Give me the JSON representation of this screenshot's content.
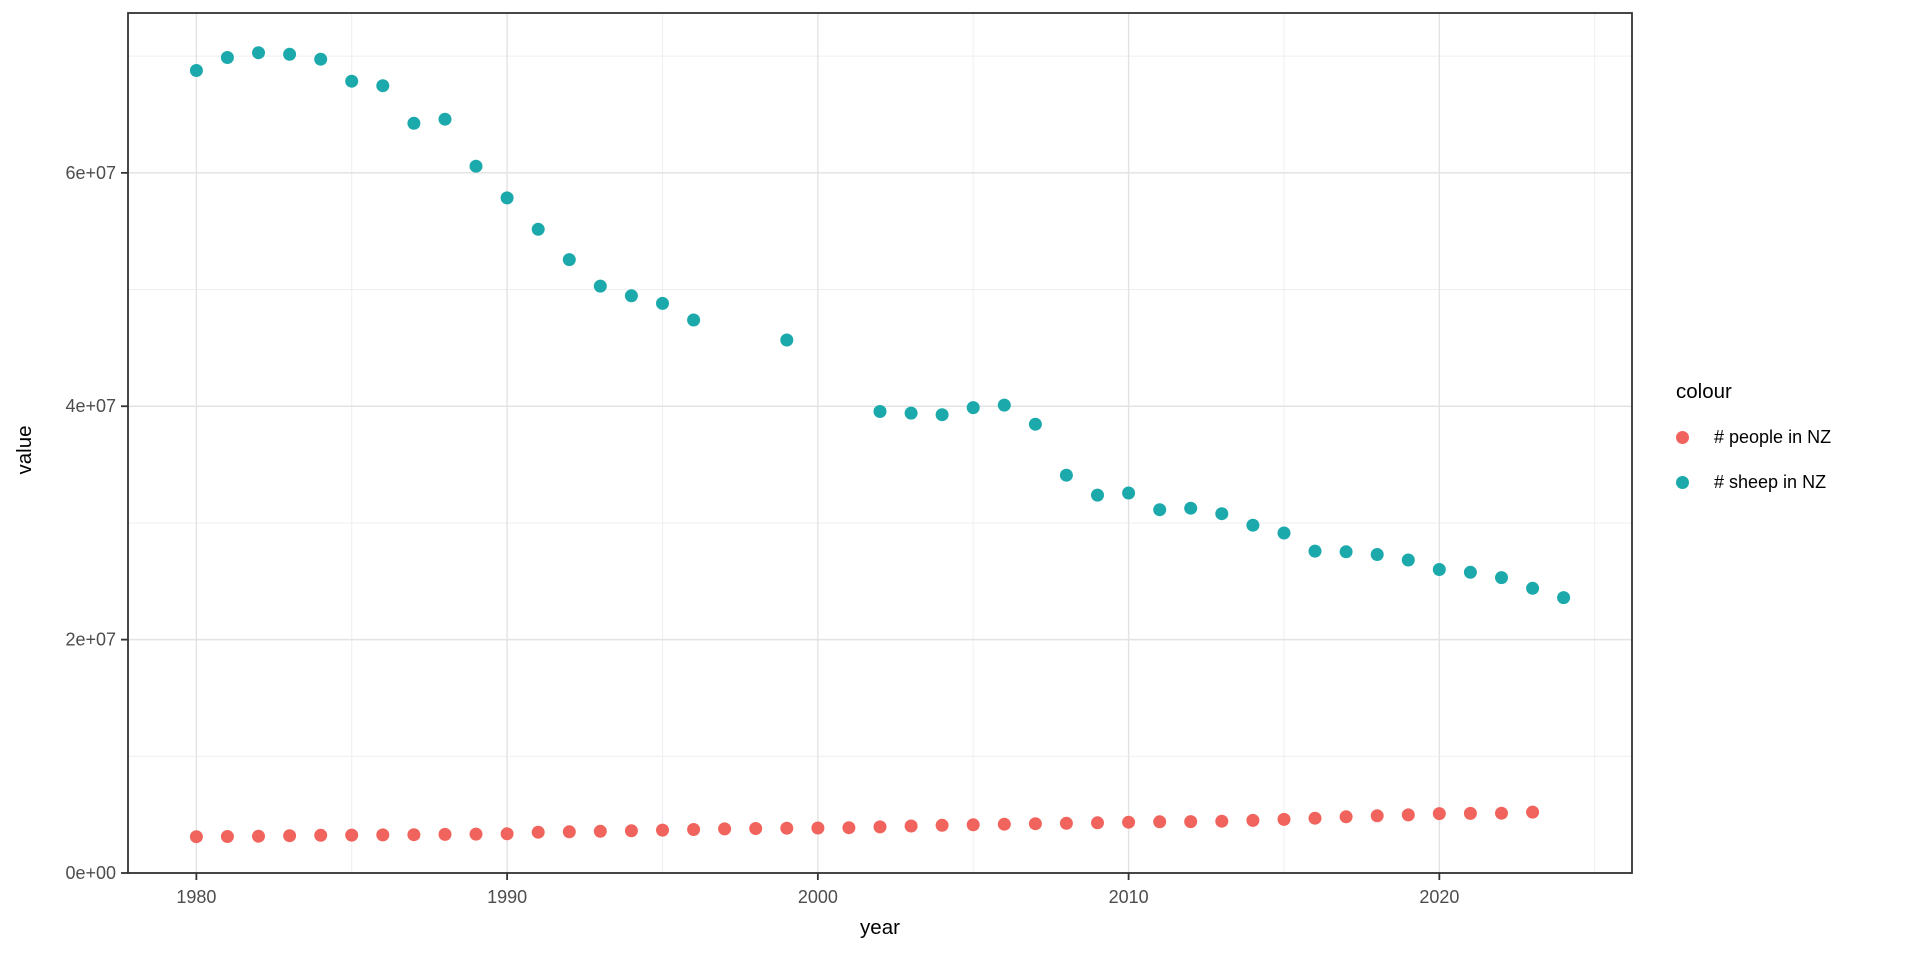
{
  "chart_data": {
    "type": "scatter",
    "title": "",
    "xlabel": "year",
    "ylabel": "value",
    "grid": true,
    "legend": {
      "title": "colour",
      "position": "right"
    },
    "x_axis": {
      "range": [
        1977.8,
        2026.2
      ],
      "ticks": [
        1980,
        1990,
        2000,
        2010,
        2020
      ],
      "tick_labels": [
        "1980",
        "1990",
        "2000",
        "2010",
        "2020"
      ],
      "minor_ticks": [
        1985,
        1995,
        2005,
        2015,
        2025
      ]
    },
    "y_axis": {
      "range": [
        0,
        73700000
      ],
      "ticks": [
        0,
        20000000,
        40000000,
        60000000
      ],
      "tick_labels": [
        "0e+00",
        "2e+07",
        "4e+07",
        "6e+07"
      ],
      "minor_ticks": [
        10000000,
        30000000,
        50000000,
        70000000
      ]
    },
    "series": [
      {
        "name": "# people in NZ",
        "color": "#F1645D",
        "points": [
          [
            1980,
            3113000
          ],
          [
            1981,
            3125000
          ],
          [
            1982,
            3156000
          ],
          [
            1983,
            3199000
          ],
          [
            1984,
            3227000
          ],
          [
            1985,
            3247000
          ],
          [
            1986,
            3263000
          ],
          [
            1987,
            3284000
          ],
          [
            1988,
            3312000
          ],
          [
            1989,
            3330000
          ],
          [
            1990,
            3360000
          ],
          [
            1991,
            3495000
          ],
          [
            1992,
            3532000
          ],
          [
            1993,
            3572000
          ],
          [
            1994,
            3620000
          ],
          [
            1995,
            3673000
          ],
          [
            1996,
            3732000
          ],
          [
            1997,
            3781000
          ],
          [
            1998,
            3815000
          ],
          [
            1999,
            3835000
          ],
          [
            2000,
            3858000
          ],
          [
            2001,
            3881000
          ],
          [
            2002,
            3949000
          ],
          [
            2003,
            4027000
          ],
          [
            2004,
            4088000
          ],
          [
            2005,
            4134000
          ],
          [
            2006,
            4185000
          ],
          [
            2007,
            4224000
          ],
          [
            2008,
            4260000
          ],
          [
            2009,
            4303000
          ],
          [
            2010,
            4351000
          ],
          [
            2011,
            4384000
          ],
          [
            2012,
            4408000
          ],
          [
            2013,
            4442000
          ],
          [
            2014,
            4510000
          ],
          [
            2015,
            4596000
          ],
          [
            2016,
            4693000
          ],
          [
            2017,
            4814000
          ],
          [
            2018,
            4901000
          ],
          [
            2019,
            4979000
          ],
          [
            2020,
            5090000
          ],
          [
            2021,
            5111000
          ],
          [
            2022,
            5124000
          ],
          [
            2023,
            5223000
          ]
        ]
      },
      {
        "name": "# sheep in NZ",
        "color": "#1BA9AB",
        "points": [
          [
            1980,
            68772000
          ],
          [
            1981,
            69883000
          ],
          [
            1982,
            70301000
          ],
          [
            1983,
            70163000
          ],
          [
            1984,
            69739000
          ],
          [
            1985,
            67854000
          ],
          [
            1986,
            67470000
          ],
          [
            1987,
            64244000
          ],
          [
            1988,
            64600000
          ],
          [
            1989,
            60569000
          ],
          [
            1990,
            57852000
          ],
          [
            1991,
            55162000
          ],
          [
            1992,
            52568000
          ],
          [
            1993,
            50298000
          ],
          [
            1994,
            49466000
          ],
          [
            1995,
            48816000
          ],
          [
            1996,
            47394000
          ],
          [
            1999,
            45680000
          ],
          [
            2002,
            39546000
          ],
          [
            2003,
            39410000
          ],
          [
            2004,
            39271000
          ],
          [
            2005,
            39880000
          ],
          [
            2006,
            40098000
          ],
          [
            2007,
            38460000
          ],
          [
            2008,
            34088000
          ],
          [
            2009,
            32384000
          ],
          [
            2010,
            32563000
          ],
          [
            2011,
            31132000
          ],
          [
            2012,
            31263000
          ],
          [
            2013,
            30787000
          ],
          [
            2014,
            29803000
          ],
          [
            2015,
            29135000
          ],
          [
            2016,
            27584000
          ],
          [
            2017,
            27527000
          ],
          [
            2018,
            27296000
          ],
          [
            2019,
            26822000
          ],
          [
            2020,
            26008000
          ],
          [
            2021,
            25772000
          ],
          [
            2022,
            25313000
          ],
          [
            2023,
            24395000
          ],
          [
            2024,
            23599000
          ]
        ]
      }
    ]
  }
}
